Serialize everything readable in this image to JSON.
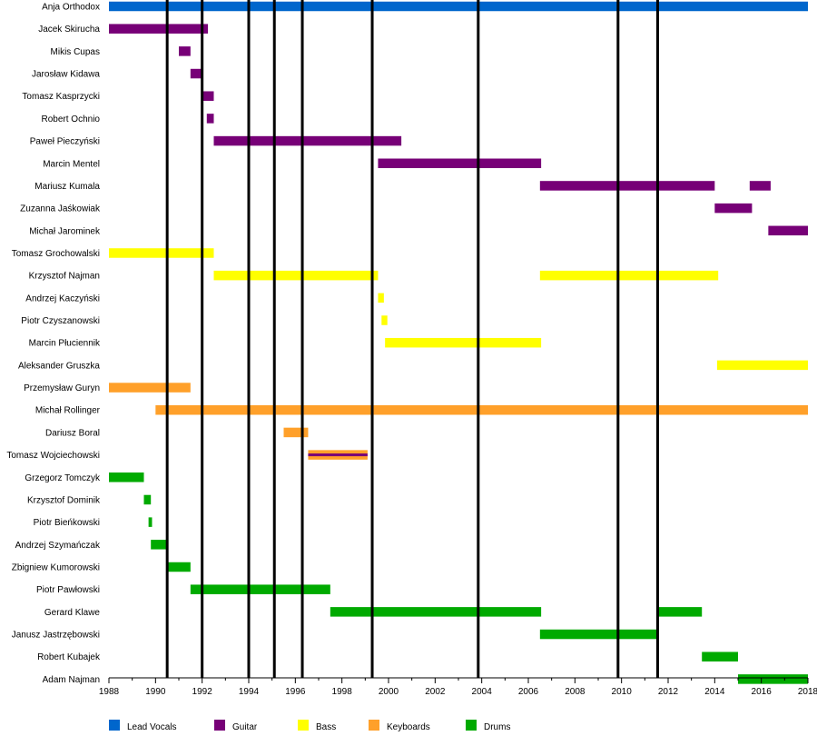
{
  "chart_data": {
    "type": "timeline",
    "title": "",
    "xlabel": "",
    "ylabel": "",
    "x_range": [
      1988,
      2018
    ],
    "x_ticks": [
      "1988",
      "1990",
      "1992",
      "1994",
      "1996",
      "1998",
      "2000",
      "2002",
      "2004",
      "2006",
      "2008",
      "2010",
      "2012",
      "2014",
      "2016",
      "2018"
    ],
    "roles": [
      {
        "name": "Lead Vocals",
        "color": "#0066cc"
      },
      {
        "name": "Guitar",
        "color": "#770077"
      },
      {
        "name": "Bass",
        "color": "#ffff00"
      },
      {
        "name": "Keyboards",
        "color": "#ffa02a"
      },
      {
        "name": "Drums",
        "color": "#00aa00"
      }
    ],
    "members": [
      {
        "name": "Anja Orthodox",
        "spans": [
          {
            "role": "Lead Vocals",
            "start": 1988.0,
            "end": 2018.0
          }
        ]
      },
      {
        "name": "Jacek Skirucha",
        "spans": [
          {
            "role": "Guitar",
            "start": 1988.0,
            "end": 1992.25
          }
        ]
      },
      {
        "name": "Mikis Cupas",
        "spans": [
          {
            "role": "Guitar",
            "start": 1991.0,
            "end": 1991.5
          }
        ]
      },
      {
        "name": "Jarosław Kidawa",
        "spans": [
          {
            "role": "Guitar",
            "start": 1991.5,
            "end": 1992.0
          }
        ]
      },
      {
        "name": "Tomasz Kasprzycki",
        "spans": [
          {
            "role": "Guitar",
            "start": 1992.0,
            "end": 1992.5
          }
        ]
      },
      {
        "name": "Robert Ochnio",
        "spans": [
          {
            "role": "Guitar",
            "start": 1992.2,
            "end": 1992.5
          }
        ]
      },
      {
        "name": "Paweł Pieczyński",
        "spans": [
          {
            "role": "Guitar",
            "start": 1992.5,
            "end": 2000.55
          }
        ]
      },
      {
        "name": "Marcin Mentel",
        "spans": [
          {
            "role": "Guitar",
            "start": 1999.55,
            "end": 2006.55
          }
        ]
      },
      {
        "name": "Mariusz Kumala",
        "spans": [
          {
            "role": "Guitar",
            "start": 2006.5,
            "end": 2014.0
          },
          {
            "role": "Guitar",
            "start": 2015.5,
            "end": 2016.4
          }
        ]
      },
      {
        "name": "Zuzanna Jaśkowiak",
        "spans": [
          {
            "role": "Guitar",
            "start": 2014.0,
            "end": 2015.6
          }
        ]
      },
      {
        "name": "Michał Jarominek",
        "spans": [
          {
            "role": "Guitar",
            "start": 2016.3,
            "end": 2018.0
          }
        ]
      },
      {
        "name": "Tomasz Grochowalski",
        "spans": [
          {
            "role": "Bass",
            "start": 1988.0,
            "end": 1992.5
          }
        ]
      },
      {
        "name": "Krzysztof Najman",
        "spans": [
          {
            "role": "Bass",
            "start": 1992.5,
            "end": 1999.55
          },
          {
            "role": "Bass",
            "start": 2006.5,
            "end": 2014.15
          }
        ]
      },
      {
        "name": "Andrzej Kaczyński",
        "spans": [
          {
            "role": "Bass",
            "start": 1999.55,
            "end": 1999.8
          }
        ]
      },
      {
        "name": "Piotr Czyszanowski",
        "spans": [
          {
            "role": "Bass",
            "start": 1999.7,
            "end": 1999.95
          }
        ]
      },
      {
        "name": "Marcin Płuciennik",
        "spans": [
          {
            "role": "Bass",
            "start": 1999.85,
            "end": 2006.55
          }
        ]
      },
      {
        "name": "Aleksander Gruszka",
        "spans": [
          {
            "role": "Bass",
            "start": 2014.1,
            "end": 2018.0
          }
        ]
      },
      {
        "name": "Przemysław Guryn",
        "spans": [
          {
            "role": "Keyboards",
            "start": 1988.0,
            "end": 1991.5
          }
        ]
      },
      {
        "name": "Michał Rollinger",
        "spans": [
          {
            "role": "Keyboards",
            "start": 1990.0,
            "end": 2018.0
          }
        ]
      },
      {
        "name": "Dariusz Boral",
        "spans": [
          {
            "role": "Keyboards",
            "start": 1995.5,
            "end": 1996.55
          }
        ]
      },
      {
        "name": "Tomasz Wojciechowski",
        "spans": [
          {
            "role": "Keyboards",
            "start": 1996.55,
            "end": 1999.1,
            "overlay": "Guitar"
          }
        ]
      },
      {
        "name": "Grzegorz Tomczyk",
        "spans": [
          {
            "role": "Drums",
            "start": 1988.0,
            "end": 1989.5
          }
        ]
      },
      {
        "name": "Krzysztof Dominik",
        "spans": [
          {
            "role": "Drums",
            "start": 1989.5,
            "end": 1989.8
          }
        ]
      },
      {
        "name": "Piotr Bieńkowski",
        "spans": [
          {
            "role": "Drums",
            "start": 1989.7,
            "end": 1989.85
          }
        ]
      },
      {
        "name": "Andrzej Szymańczak",
        "spans": [
          {
            "role": "Drums",
            "start": 1989.8,
            "end": 1990.55
          }
        ]
      },
      {
        "name": "Zbigniew Kumorowski",
        "spans": [
          {
            "role": "Drums",
            "start": 1990.5,
            "end": 1991.5
          }
        ]
      },
      {
        "name": "Piotr Pawłowski",
        "spans": [
          {
            "role": "Drums",
            "start": 1991.5,
            "end": 1997.5
          }
        ]
      },
      {
        "name": "Gerard Klawe",
        "spans": [
          {
            "role": "Drums",
            "start": 1997.5,
            "end": 2006.55
          },
          {
            "role": "Drums",
            "start": 2011.5,
            "end": 2013.45
          }
        ]
      },
      {
        "name": "Janusz Jastrzębowski",
        "spans": [
          {
            "role": "Drums",
            "start": 2006.5,
            "end": 2011.55
          }
        ]
      },
      {
        "name": "Robert Kubajek",
        "spans": [
          {
            "role": "Drums",
            "start": 2013.45,
            "end": 2015.0
          }
        ]
      },
      {
        "name": "Adam Najman",
        "spans": [
          {
            "role": "Drums",
            "start": 2015.0,
            "end": 2018.0
          }
        ]
      }
    ],
    "event_lines": [
      1990.5,
      1992.0,
      1994.0,
      1995.1,
      1996.3,
      1999.3,
      2003.85,
      2009.85,
      2011.55
    ]
  }
}
